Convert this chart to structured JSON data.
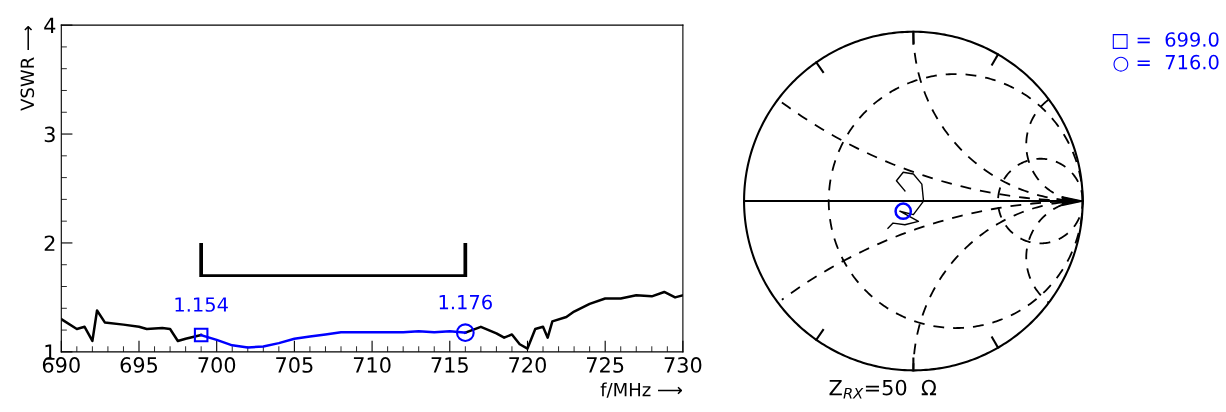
{
  "chart_data": [
    {
      "type": "line",
      "xlabel": "f/MHz ⟶",
      "ylabel": "VSWR ⟶",
      "xlim": [
        690,
        730
      ],
      "ylim": [
        1,
        4
      ],
      "xticks": [
        690,
        695,
        700,
        705,
        710,
        715,
        720,
        725,
        730
      ],
      "yticks": [
        1,
        2,
        3,
        4
      ],
      "grid": false,
      "legend": false,
      "series": [
        {
          "color": "#000000",
          "x": [
            690,
            691,
            691.5,
            692,
            692.3,
            692.8,
            694,
            695,
            695.5,
            696.5,
            697,
            697.5,
            698,
            699,
            null,
            716,
            717,
            718,
            718.5,
            719,
            719.5,
            720,
            720.5,
            721,
            721.3,
            721.6,
            722.5,
            723,
            724,
            725,
            726,
            727,
            728,
            728.8,
            729.5,
            730
          ],
          "values": [
            1.3,
            1.21,
            1.23,
            1.1,
            1.38,
            1.27,
            1.25,
            1.23,
            1.21,
            1.22,
            1.21,
            1.1,
            1.12,
            1.154,
            null,
            1.176,
            1.23,
            1.17,
            1.13,
            1.16,
            1.07,
            1.03,
            1.21,
            1.23,
            1.13,
            1.28,
            1.32,
            1.37,
            1.44,
            1.49,
            1.49,
            1.52,
            1.51,
            1.55,
            1.5,
            1.52
          ]
        },
        {
          "color": "#0000ff",
          "x": [
            699,
            700,
            701,
            702,
            703,
            704,
            705,
            706,
            707,
            708,
            709,
            710,
            711,
            712,
            713,
            714,
            715,
            716
          ],
          "values": [
            1.154,
            1.11,
            1.06,
            1.04,
            1.05,
            1.08,
            1.12,
            1.14,
            1.16,
            1.18,
            1.18,
            1.18,
            1.18,
            1.18,
            1.19,
            1.18,
            1.19,
            1.176
          ]
        },
        {
          "type": "scatter",
          "marker": "square",
          "color": "#0000ff",
          "x": [
            699
          ],
          "values": [
            1.154
          ]
        },
        {
          "type": "scatter",
          "marker": "circle",
          "color": "#0000ff",
          "x": [
            716
          ],
          "values": [
            1.176
          ]
        }
      ],
      "annotations": [
        {
          "text": "1.154",
          "x": 699,
          "y": 1.154
        },
        {
          "text": "1.176",
          "x": 716,
          "y": 1.176
        }
      ]
    },
    {
      "type": "other",
      "annotations": [
        "□ =  699.0",
        "○ =  716.0",
        "Z$_{RX}$=50  Ω"
      ]
    }
  ]
}
